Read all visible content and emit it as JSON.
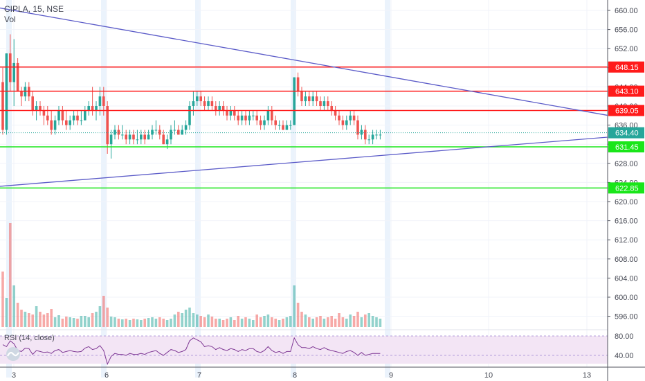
{
  "header": {
    "symbol": "CIPLA, 15, NSE",
    "volume_label": "Vol"
  },
  "rsi": {
    "label": "RSI (14, close)",
    "levels": [
      "80.00",
      "40.00"
    ]
  },
  "colors": {
    "up": "#26a69a",
    "down": "#ef5350",
    "trendline": "#5b5bc8",
    "resistance": "#ff1a1a",
    "support": "#19e619",
    "rsi_line": "#7e3794",
    "rsi_band": "#f3e5f5",
    "price_tag": "#26a69a"
  },
  "chart_data": {
    "type": "candlestick",
    "y_ticks": [
      "660.00",
      "656.00",
      "652.00",
      "648.00",
      "644.00",
      "640.00",
      "636.00",
      "632.00",
      "628.00",
      "624.00",
      "620.00",
      "616.00",
      "612.00",
      "608.00",
      "604.00",
      "600.00",
      "596.00"
    ],
    "x_ticks": [
      "3",
      "6",
      "7",
      "8",
      "9",
      "10",
      "13"
    ],
    "current_price": "634.40",
    "levels": [
      {
        "label": "648.15",
        "kind": "resistance",
        "price": 648.15
      },
      {
        "label": "643.10",
        "kind": "resistance",
        "price": 643.1
      },
      {
        "label": "639.05",
        "kind": "resistance",
        "price": 639.05
      },
      {
        "label": "631.45",
        "kind": "support",
        "price": 631.45
      },
      {
        "label": "622.85",
        "kind": "support",
        "price": 622.85
      }
    ],
    "trendlines": [
      {
        "from": {
          "bar": 0,
          "price": 660.5
        },
        "to": {
          "bar": 127,
          "price": 638.0
        }
      },
      {
        "from": {
          "bar": 0,
          "price": 623.2
        },
        "to": {
          "bar": 127,
          "price": 633.5
        }
      }
    ],
    "candles": [
      [
        645,
        648,
        634,
        635
      ],
      [
        635,
        651,
        634,
        651
      ],
      [
        651,
        655,
        643,
        645
      ],
      [
        645,
        654,
        640,
        649
      ],
      [
        649,
        650,
        643,
        643
      ],
      [
        643,
        644,
        640,
        642
      ],
      [
        642,
        645,
        641,
        644
      ],
      [
        644,
        645,
        641,
        642
      ],
      [
        642,
        643,
        638,
        639
      ],
      [
        639,
        641,
        637,
        640
      ],
      [
        640,
        641,
        638,
        639
      ],
      [
        639,
        640,
        636,
        638
      ],
      [
        638,
        640,
        636,
        637
      ],
      [
        637,
        639,
        634,
        635
      ],
      [
        635,
        638,
        634,
        637
      ],
      [
        637,
        640,
        636,
        639
      ],
      [
        639,
        640,
        636,
        637
      ],
      [
        637,
        639,
        635,
        636
      ],
      [
        636,
        638,
        635,
        637
      ],
      [
        637,
        639,
        636,
        638
      ],
      [
        638,
        639,
        636,
        637
      ],
      [
        637,
        639,
        636,
        637
      ],
      [
        637,
        640,
        637,
        639
      ],
      [
        639,
        641,
        638,
        640
      ],
      [
        640,
        644,
        638,
        639
      ],
      [
        639,
        641,
        637,
        640
      ],
      [
        640,
        644,
        638,
        642
      ],
      [
        642,
        644,
        638,
        640
      ],
      [
        640,
        641,
        630,
        632
      ],
      [
        632,
        635,
        629,
        634
      ],
      [
        634,
        636,
        633,
        635
      ],
      [
        635,
        636,
        633,
        634
      ],
      [
        634,
        636,
        633,
        634
      ],
      [
        634,
        635,
        632,
        633
      ],
      [
        633,
        635,
        632,
        634
      ],
      [
        634,
        635,
        632,
        633
      ],
      [
        633,
        635,
        632,
        633
      ],
      [
        633,
        635,
        632,
        634
      ],
      [
        634,
        635,
        632,
        633
      ],
      [
        633,
        635,
        633,
        634
      ],
      [
        634,
        636,
        633,
        635
      ],
      [
        635,
        637,
        634,
        635
      ],
      [
        635,
        636,
        633,
        634
      ],
      [
        634,
        635,
        632,
        632
      ],
      [
        632,
        634,
        631,
        633
      ],
      [
        633,
        636,
        632,
        635
      ],
      [
        635,
        637,
        634,
        635
      ],
      [
        635,
        636,
        634,
        634
      ],
      [
        634,
        636,
        634,
        635
      ],
      [
        635,
        637,
        634,
        636
      ],
      [
        636,
        641,
        635,
        640
      ],
      [
        640,
        643,
        638,
        641
      ],
      [
        641,
        643,
        640,
        642
      ],
      [
        642,
        643,
        640,
        641
      ],
      [
        641,
        642,
        639,
        640
      ],
      [
        640,
        642,
        639,
        641
      ],
      [
        641,
        642,
        639,
        640
      ],
      [
        640,
        641,
        638,
        639
      ],
      [
        639,
        641,
        638,
        640
      ],
      [
        640,
        641,
        638,
        639
      ],
      [
        639,
        640,
        637,
        638
      ],
      [
        638,
        640,
        637,
        639
      ],
      [
        639,
        640,
        637,
        638
      ],
      [
        638,
        639,
        636,
        637
      ],
      [
        637,
        639,
        636,
        638
      ],
      [
        638,
        639,
        636,
        637
      ],
      [
        637,
        639,
        636,
        638
      ],
      [
        638,
        639,
        637,
        638
      ],
      [
        638,
        639,
        636,
        637
      ],
      [
        637,
        638,
        635,
        636
      ],
      [
        636,
        638,
        635,
        637
      ],
      [
        637,
        640,
        636,
        639
      ],
      [
        639,
        640,
        636,
        637
      ],
      [
        637,
        638,
        635,
        636
      ],
      [
        636,
        637,
        635,
        636
      ],
      [
        636,
        637,
        635,
        635
      ],
      [
        635,
        637,
        635,
        636
      ],
      [
        636,
        637,
        635,
        636
      ],
      [
        636,
        646,
        636,
        646
      ],
      [
        646,
        647,
        642,
        643
      ],
      [
        643,
        644,
        640,
        641
      ],
      [
        641,
        643,
        640,
        642
      ],
      [
        642,
        643,
        640,
        641
      ],
      [
        641,
        643,
        640,
        642
      ],
      [
        642,
        643,
        640,
        641
      ],
      [
        641,
        642,
        639,
        640
      ],
      [
        640,
        642,
        639,
        641
      ],
      [
        641,
        642,
        639,
        640
      ],
      [
        640,
        641,
        638,
        639
      ],
      [
        639,
        640,
        637,
        638
      ],
      [
        638,
        639,
        636,
        637
      ],
      [
        637,
        638,
        635,
        636
      ],
      [
        636,
        638,
        635,
        637
      ],
      [
        637,
        639,
        636,
        638
      ],
      [
        638,
        639,
        636,
        637
      ],
      [
        637,
        638,
        633,
        634
      ],
      [
        634,
        636,
        633,
        635
      ],
      [
        635,
        636,
        632,
        633
      ],
      [
        633,
        634,
        632,
        633
      ],
      [
        633,
        635,
        632,
        634
      ],
      [
        634,
        635,
        633,
        634
      ],
      [
        634,
        635,
        633,
        634
      ]
    ],
    "volumes": [
      80,
      42,
      150,
      60,
      35,
      25,
      22,
      20,
      18,
      30,
      22,
      18,
      20,
      26,
      14,
      17,
      12,
      15,
      14,
      13,
      12,
      16,
      16,
      14,
      20,
      22,
      30,
      45,
      28,
      15,
      14,
      12,
      11,
      12,
      10,
      12,
      11,
      10,
      12,
      13,
      14,
      12,
      14,
      12,
      10,
      12,
      18,
      22,
      20,
      25,
      28,
      20,
      18,
      16,
      14,
      18,
      15,
      12,
      12,
      10,
      12,
      14,
      10,
      16,
      12,
      14,
      12,
      10,
      18,
      14,
      16,
      18,
      14,
      12,
      10,
      12,
      14,
      16,
      60,
      35,
      22,
      18,
      14,
      12,
      14,
      16,
      12,
      14,
      16,
      12,
      20,
      14,
      12,
      18,
      16,
      22,
      14,
      18,
      20,
      16,
      14,
      12
    ],
    "rsi": [
      62,
      58,
      70,
      64,
      50,
      48,
      55,
      54,
      42,
      50,
      48,
      46,
      47,
      44,
      50,
      52,
      46,
      48,
      50,
      48,
      47,
      48,
      55,
      58,
      52,
      54,
      60,
      50,
      22,
      38,
      44,
      42,
      42,
      40,
      44,
      42,
      42,
      44,
      42,
      46,
      48,
      50,
      44,
      40,
      46,
      52,
      50,
      46,
      48,
      52,
      70,
      76,
      72,
      68,
      58,
      60,
      58,
      52,
      56,
      52,
      50,
      54,
      52,
      48,
      52,
      50,
      54,
      54,
      48,
      46,
      50,
      58,
      50,
      46,
      48,
      44,
      48,
      48,
      76,
      62,
      56,
      56,
      54,
      58,
      54,
      52,
      56,
      52,
      50,
      48,
      46,
      44,
      48,
      50,
      46,
      40,
      46,
      40,
      42,
      44,
      44,
      44
    ]
  }
}
